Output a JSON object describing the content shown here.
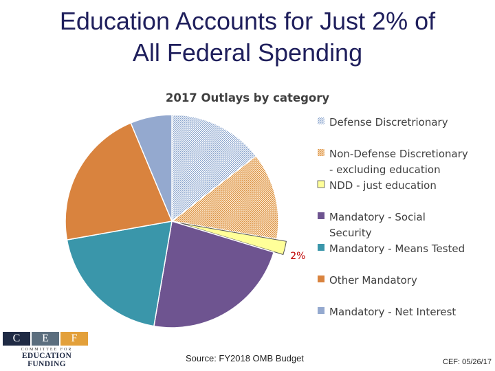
{
  "slide": {
    "title_line1": "Education Accounts for Just 2% of",
    "title_line2": "All Federal Spending",
    "source": "Source: FY2018 OMB Budget",
    "footer": "CEF: 05/26/17"
  },
  "logo": {
    "letters": [
      "C",
      "E",
      "F"
    ],
    "letter_colors": [
      "#1f2a44",
      "#5b6e7e",
      "#e3a03a"
    ],
    "subtitle": "COMMITTEE FOR",
    "name": "EDUCATION FUNDING"
  },
  "chart_data": {
    "type": "pie",
    "title": "2017 Outlays by category",
    "slices": [
      {
        "name": "Defense Discretrionary",
        "legend_lines": [
          "Defense Discretrionary"
        ],
        "value": 14.5,
        "color": "#9db3d6",
        "pattern": "dots-blue"
      },
      {
        "name": "Non-Defense Discretionary - excluding education",
        "legend_lines": [
          "Non-Defense Discretionary",
          "- excluding education"
        ],
        "value": 13.2,
        "color": "#e6a85c",
        "pattern": "dots-orange"
      },
      {
        "name": "NDD - just education",
        "legend_lines": [
          "NDD - just education"
        ],
        "value": 2,
        "color": "#ffff99",
        "label": "2%",
        "exploded": true,
        "legend_color": "#c00000"
      },
      {
        "name": "Mandatory - Social Security",
        "legend_lines": [
          "Mandatory - Social",
          "Security"
        ],
        "value": 23,
        "color": "#6e5490"
      },
      {
        "name": "Mandatory - Means Tested",
        "legend_lines": [
          "Mandatory - Means Tested"
        ],
        "value": 19.5,
        "color": "#3a96aa"
      },
      {
        "name": "Other Mandatory",
        "legend_lines": [
          "Other Mandatory"
        ],
        "value": 21.5,
        "color": "#d9833e"
      },
      {
        "name": "Mandatory - Net Interest",
        "legend_lines": [
          "Mandatory - Net Interest"
        ],
        "value": 6.3,
        "color": "#94a9cf"
      }
    ]
  }
}
